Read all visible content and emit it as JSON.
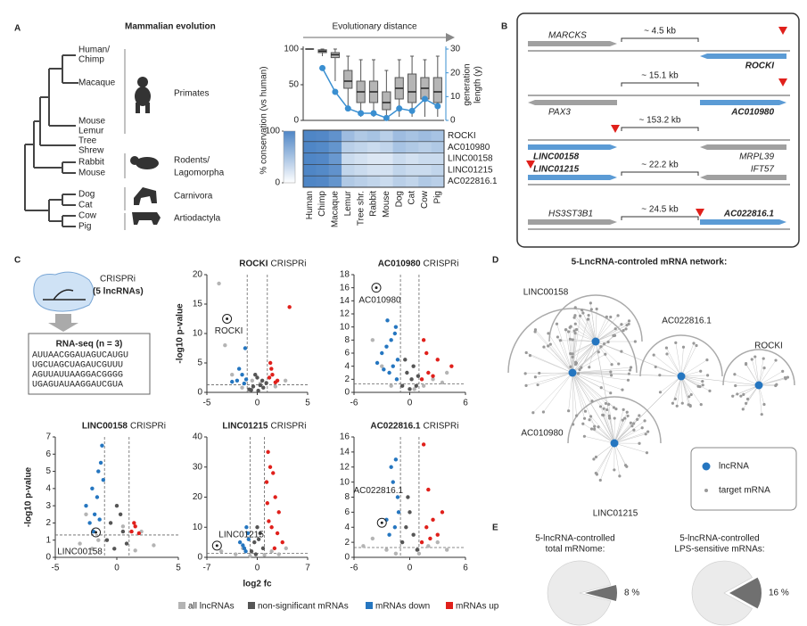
{
  "panel_labels": [
    "A",
    "B",
    "C",
    "D",
    "E"
  ],
  "tree": {
    "title": "Mammalian evolution",
    "species": [
      "Human/",
      "Chimp",
      "Macaque",
      "Mouse",
      "Lemur",
      "Tree",
      "Shrew",
      "Rabbit",
      "Mouse",
      "Dog",
      "Cat",
      "Cow",
      "Pig"
    ],
    "groups": [
      "Primates",
      "Rodents/",
      "Lagomorpha",
      "Carnivora",
      "Artiodactyla"
    ]
  },
  "chart_data": [
    {
      "type": "box",
      "title": "Evolutionary distance",
      "y2label": [
        "generation",
        "length (y)"
      ],
      "ylim": [
        0,
        100
      ],
      "yticks": [
        0,
        50,
        100
      ],
      "y2lim": [
        0,
        30
      ],
      "y2ticks": [
        0,
        10,
        20,
        30
      ],
      "boxes": {
        "min": [
          100,
          90,
          55,
          20,
          5,
          5,
          0,
          5,
          5,
          5,
          5
        ],
        "q1": [
          100,
          95,
          88,
          45,
          25,
          25,
          15,
          30,
          25,
          30,
          25
        ],
        "median": [
          100,
          97,
          92,
          55,
          40,
          40,
          25,
          45,
          40,
          45,
          40
        ],
        "q3": [
          100,
          99,
          95,
          70,
          55,
          55,
          40,
          60,
          65,
          60,
          60
        ],
        "max": [
          100,
          100,
          100,
          90,
          85,
          85,
          70,
          85,
          90,
          85,
          90
        ]
      },
      "box_color": "#b5b5b5",
      "series": [
        {
          "color": "#3a8fd1",
          "axis": "y2",
          "values": [
            null,
            22,
            12,
            5,
            3,
            3,
            1,
            5,
            4,
            9,
            6
          ]
        }
      ]
    },
    {
      "type": "heatmap",
      "ylabel": "% conservation (vs human)",
      "categories": [
        "Human",
        "Chimp",
        "Macaque",
        "Lemur",
        "Tree shr.",
        "Rabbit",
        "Mouse",
        "Dog",
        "Cat",
        "Cow",
        "Pig"
      ],
      "rows": [
        "ROCKI",
        "AC010980",
        "LINC00158",
        "LINC01215",
        "AC022816.1"
      ],
      "values": [
        [
          100,
          98,
          90,
          55,
          45,
          50,
          40,
          55,
          50,
          55,
          50
        ],
        [
          100,
          97,
          88,
          40,
          35,
          30,
          35,
          50,
          45,
          40,
          45
        ],
        [
          100,
          98,
          85,
          30,
          25,
          20,
          20,
          30,
          25,
          30,
          30
        ],
        [
          100,
          97,
          90,
          35,
          30,
          25,
          25,
          35,
          30,
          30,
          35
        ],
        [
          100,
          98,
          88,
          45,
          40,
          35,
          30,
          40,
          35,
          45,
          40
        ]
      ],
      "zlim": [
        0,
        100
      ],
      "zticks": [
        0,
        100
      ],
      "color": "#4f86c6"
    },
    {
      "type": "volcano",
      "title": "ROCKI",
      "subtitle": "CRISPRi",
      "ylabel": "-log10 p-value",
      "xlim": [
        -5,
        5
      ],
      "xticks": [
        -5,
        0,
        5
      ],
      "ylim": [
        0,
        20
      ],
      "yticks": [
        0,
        5,
        10,
        15,
        20
      ],
      "thresholds": {
        "x": [
          -1,
          1
        ],
        "y": 1.3
      },
      "annotation": {
        "text": "ROCKI",
        "x": -3,
        "y": 12.5
      },
      "series": [
        {
          "x": [
            -3.8,
            -3.2,
            -2.5,
            -0.5,
            0.3,
            2.8,
            -1.5,
            1.8
          ],
          "y": [
            18.5,
            8,
            3,
            2,
            1.5,
            2,
            0.8,
            1
          ]
        },
        {
          "x": [
            -0.8,
            -0.4,
            0,
            0.3,
            0.6,
            0.9,
            -0.2,
            0.1,
            0.5,
            -0.6
          ],
          "y": [
            0.5,
            1,
            2.5,
            1.2,
            0.8,
            1.6,
            3,
            0.3,
            2,
            0.4
          ]
        },
        {
          "x": [
            -1.2,
            -1.5,
            -2,
            -1.3,
            -1.8,
            -2.5,
            -1.1
          ],
          "y": [
            7.5,
            3,
            2,
            1.5,
            4,
            1.8,
            2.2
          ]
        },
        {
          "x": [
            3.2,
            1.3,
            1.5,
            2,
            1.2,
            1.8,
            1.4
          ],
          "y": [
            14.5,
            5,
            3,
            2,
            2.5,
            1.7,
            4
          ]
        }
      ]
    },
    {
      "type": "volcano",
      "title": "AC010980",
      "subtitle": "CRISPRi",
      "xlim": [
        -6,
        6
      ],
      "xticks": [
        -6,
        0,
        6
      ],
      "ylim": [
        0,
        18
      ],
      "yticks": [
        0,
        2,
        4,
        6,
        8,
        10,
        12,
        14,
        16,
        18
      ],
      "thresholds": {
        "x": [
          -1,
          1
        ],
        "y": 1.3
      },
      "annotation": {
        "text": "AC010980",
        "x": -3.6,
        "y": 16
      },
      "series": [
        {
          "x": [
            -4,
            -3,
            2.5,
            3.5,
            1.5,
            -2,
            0.5,
            4
          ],
          "y": [
            8,
            4,
            2,
            1.5,
            1,
            1,
            0.5,
            3
          ]
        },
        {
          "x": [
            -0.8,
            -0.3,
            0.2,
            0.7,
            -0.5,
            0.4,
            0,
            0.9
          ],
          "y": [
            1,
            3,
            2,
            1,
            5,
            4,
            0.5,
            2.5
          ]
        },
        {
          "x": [
            -1.5,
            -2,
            -2.5,
            -3,
            -1.3,
            -1.8,
            -2.2,
            -1.6,
            -2.8,
            -1.4,
            -3.5,
            -2.4
          ],
          "y": [
            10,
            8,
            7,
            6,
            5,
            4,
            3,
            9,
            3.5,
            2,
            4.5,
            11
          ]
        },
        {
          "x": [
            1.5,
            2,
            3,
            1.3,
            4.5,
            2.5,
            1.8
          ],
          "y": [
            8,
            3,
            5,
            2,
            4,
            2.5,
            6
          ]
        }
      ]
    },
    {
      "type": "volcano",
      "title": "LINC00158",
      "subtitle": "CRISPRi",
      "ylabel": "-log10 p-value",
      "xlim": [
        -5,
        5
      ],
      "xticks": [
        -5,
        0,
        5
      ],
      "ylim": [
        0,
        7
      ],
      "yticks": [
        0,
        1,
        2,
        3,
        4,
        5,
        6,
        7
      ],
      "thresholds": {
        "x": [
          -1,
          1
        ],
        "y": 1.3
      },
      "annotation": {
        "text": "LINC00158",
        "x": -1.7,
        "y": 1.45
      },
      "series": [
        {
          "x": [
            -3,
            -2.5,
            -2,
            2,
            3,
            -1.5,
            1.5,
            0.5
          ],
          "y": [
            0.8,
            2.5,
            0.5,
            1.5,
            0.7,
            1,
            0.4,
            1.8
          ]
        },
        {
          "x": [
            -0.8,
            -0.5,
            0,
            0.5,
            0.8,
            -0.2,
            0.3
          ],
          "y": [
            1,
            2,
            3,
            1.5,
            0.8,
            0.5,
            2.5
          ]
        },
        {
          "x": [
            -1.2,
            -1.5,
            -2,
            -2.5,
            -1.8,
            -1.3,
            -1.6,
            -2.2,
            -1.4,
            -1.1,
            -1.9
          ],
          "y": [
            6.5,
            5,
            4,
            3,
            2.5,
            5.5,
            3.5,
            2,
            2.2,
            4.5,
            1.5
          ]
        },
        {
          "x": [
            1.2,
            1.4,
            1.8,
            1.5
          ],
          "y": [
            1.5,
            2,
            1.4,
            1.8
          ]
        }
      ]
    },
    {
      "type": "volcano",
      "title": "LINC01215",
      "subtitle": "CRISPRi",
      "xlabel": "log2 fc",
      "xlim": [
        -7,
        7
      ],
      "xticks": [
        -7,
        0,
        7
      ],
      "ylim": [
        0,
        40
      ],
      "yticks": [
        0,
        10,
        20,
        30,
        40
      ],
      "thresholds": {
        "x": [
          -1,
          1
        ],
        "y": 1.3
      },
      "annotation": {
        "text": "LINC01215",
        "x": -5.6,
        "y": 3.9
      },
      "series": [
        {
          "x": [
            -5,
            -3,
            -2,
            2,
            3,
            4,
            -1,
            1
          ],
          "y": [
            2,
            1,
            3,
            2,
            1,
            3,
            0.5,
            0.8
          ]
        },
        {
          "x": [
            -0.8,
            -0.4,
            0,
            0.4,
            0.8,
            -0.2,
            0.2
          ],
          "y": [
            2,
            5,
            10,
            8,
            3,
            1,
            6
          ]
        },
        {
          "x": [
            -1.2,
            -1.5,
            -2,
            -1.3,
            -1.8,
            -2.4,
            -1.6
          ],
          "y": [
            6,
            10,
            4,
            8,
            3,
            5,
            2
          ]
        },
        {
          "x": [
            1.5,
            1.8,
            2.2,
            2.5,
            3,
            1.3,
            1.6,
            2,
            2.8,
            3.5,
            1.4,
            2.4
          ],
          "y": [
            35,
            30,
            28,
            20,
            15,
            25,
            12,
            10,
            8,
            5,
            18,
            3
          ]
        }
      ]
    },
    {
      "type": "volcano",
      "title": "AC022816.1",
      "subtitle": "CRISPRi",
      "xlim": [
        -6,
        6
      ],
      "xticks": [
        -6,
        0,
        6
      ],
      "ylim": [
        0,
        16
      ],
      "yticks": [
        0,
        2,
        4,
        6,
        8,
        10,
        12,
        14,
        16
      ],
      "thresholds": {
        "x": [
          -1,
          1
        ],
        "y": 1.3
      },
      "annotation": {
        "text": "AC022816.1",
        "x": -3,
        "y": 4.6
      },
      "series": [
        {
          "x": [
            -5,
            -4,
            -2.5,
            2,
            3,
            4,
            -1.5,
            1
          ],
          "y": [
            1.5,
            2.5,
            1,
            1.5,
            2,
            1,
            0.5,
            0.5
          ]
        },
        {
          "x": [
            -0.8,
            -0.4,
            0,
            0.4,
            0.8,
            -0.2
          ],
          "y": [
            2,
            4,
            6,
            3,
            1,
            8
          ]
        },
        {
          "x": [
            -1.5,
            -2,
            -1.8,
            -1.3,
            -2.5,
            -1.6,
            -1.2,
            -2.2
          ],
          "y": [
            13,
            12,
            10,
            8,
            5,
            4,
            6,
            3
          ]
        },
        {
          "x": [
            1.5,
            2,
            2.5,
            3,
            3.5,
            1.3,
            1.8,
            2.2
          ],
          "y": [
            15,
            9,
            5,
            3,
            6,
            2,
            4,
            2.5
          ]
        }
      ]
    },
    {
      "type": "pie",
      "title": [
        "5-lncRNA-controlled",
        "total mRNome:"
      ],
      "values": [
        8
      ],
      "value_labels": [
        "8 %"
      ],
      "color": "#707070",
      "rest_color": "#ebebeb"
    },
    {
      "type": "pie",
      "title": [
        "5-lncRNA-controlled",
        "LPS-sensitive mRNAs:"
      ],
      "values": [
        16
      ],
      "value_labels": [
        "16 %"
      ],
      "color": "#707070",
      "rest_color": "#ebebeb"
    }
  ],
  "legend": [
    {
      "name": "all lncRNAs",
      "color": "#b4b4b4"
    },
    {
      "name": "non-significant mRNAs",
      "color": "#555555"
    },
    {
      "name": "mRNAs down",
      "color": "#2576c0"
    },
    {
      "name": "mRNAs up",
      "color": "#e0201b"
    }
  ],
  "crispri": {
    "label": "CRISPRi",
    "count": "(5 lncRNAs)",
    "assay": "RNA-seq (n = 3)",
    "reads": [
      "AUUAACGGAUAGUCAUGU",
      "UGCUAGCUAGAUCGUUU",
      "AGUUAUUAAGGACGGGG",
      "UGAGUAUAAGGAUCGUA"
    ]
  },
  "loci": [
    {
      "left": "MARCKS",
      "distance": "~ 4.5 kb",
      "right": "ROCKI"
    },
    {
      "left": "PAX3",
      "distance": "~ 15.1 kb",
      "right": "AC010980"
    },
    {
      "left": "LINC00158",
      "distance": "~ 153.2 kb",
      "right": "MRPL39"
    },
    {
      "left": "LINC01215",
      "distance": "~ 22.2 kb",
      "right": "IFT57"
    },
    {
      "left": "HS3ST3B1",
      "distance": "~ 24.5 kb",
      "right": "AC022816.1"
    }
  ],
  "network": {
    "title": "5-LncRNA-controled mRNA network:",
    "hubs": [
      "LINC00158",
      "AC010980",
      "AC022816.1",
      "ROCKI",
      "LINC01215"
    ],
    "legend": [
      "lncRNA",
      "target mRNA"
    ],
    "hub_color": "#2576c0",
    "target_color": "#999999"
  }
}
